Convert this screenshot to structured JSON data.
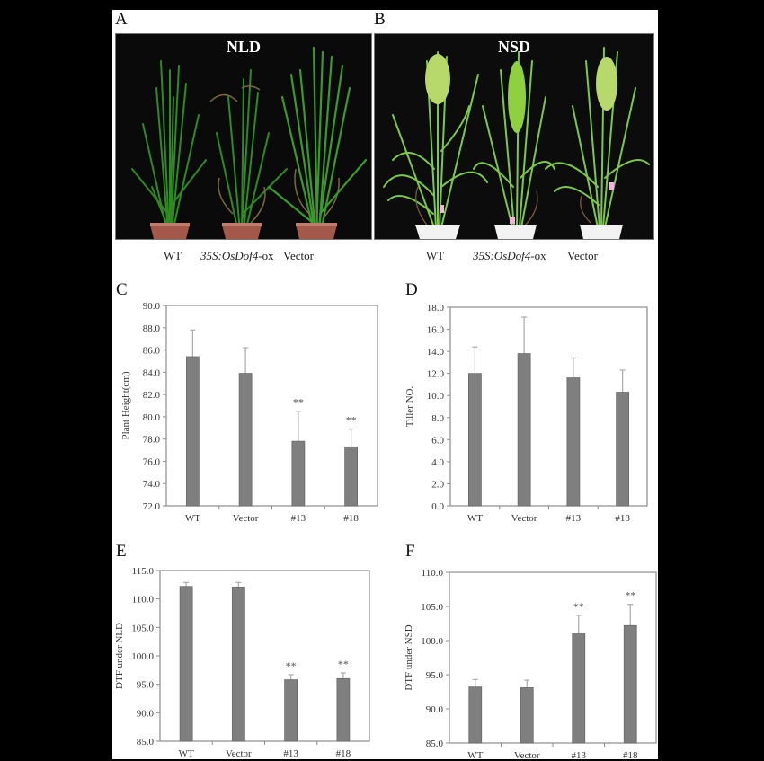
{
  "figure": {
    "panels": {
      "A": {
        "letter": "A",
        "title": "NLD",
        "labels": [
          "WT",
          "35S:OsDof4",
          "-ox",
          "Vector"
        ]
      },
      "B": {
        "letter": "B",
        "title": "NSD",
        "labels": [
          "WT",
          "35S:OsDof4",
          "-ox",
          "Vector"
        ]
      },
      "C": {
        "letter": "C"
      },
      "D": {
        "letter": "D"
      },
      "E": {
        "letter": "E"
      },
      "F": {
        "letter": "F"
      }
    },
    "colors": {
      "bar": "#7f7f7f",
      "axis": "#8c8c8c",
      "background": "#ffffff",
      "frame": "#000000"
    }
  },
  "chart_data": [
    {
      "panel": "C",
      "type": "bar",
      "categories": [
        "WT",
        "Vector",
        "#13",
        "#18"
      ],
      "values": [
        85.4,
        83.9,
        77.8,
        77.3
      ],
      "error_upper": [
        87.8,
        86.2,
        80.5,
        78.9
      ],
      "annotations": [
        "",
        "",
        "**",
        "**"
      ],
      "ylabel": "Plant Height(cm)",
      "xlabel": "",
      "ylim": [
        72.0,
        90.0
      ],
      "yticks": [
        "72.0",
        "74.0",
        "76.0",
        "78.0",
        "80.0",
        "82.0",
        "84.0",
        "86.0",
        "88.0",
        "90.0"
      ],
      "grid": false
    },
    {
      "panel": "D",
      "type": "bar",
      "categories": [
        "WT",
        "Vector",
        "#13",
        "#18"
      ],
      "values": [
        12.0,
        13.8,
        11.6,
        10.3
      ],
      "error_upper": [
        14.4,
        17.1,
        13.4,
        12.3
      ],
      "annotations": [
        "",
        "",
        "",
        ""
      ],
      "ylabel": "Tiller NO.",
      "xlabel": "",
      "ylim": [
        0.0,
        18.0
      ],
      "yticks": [
        "0.0",
        "2.0",
        "4.0",
        "6.0",
        "8.0",
        "10.0",
        "12.0",
        "14.0",
        "16.0",
        "18.0"
      ],
      "grid": false
    },
    {
      "panel": "E",
      "type": "bar",
      "categories": [
        "WT",
        "Vector",
        "#13",
        "#18"
      ],
      "values": [
        112.2,
        112.1,
        95.8,
        96.0
      ],
      "error_upper": [
        112.9,
        112.9,
        96.7,
        97.0
      ],
      "annotations": [
        "",
        "",
        "**",
        "**"
      ],
      "ylabel": "DTF under NLD",
      "xlabel": "",
      "ylim": [
        85.0,
        115.0
      ],
      "yticks": [
        "85.0",
        "90.0",
        "95.0",
        "100.0",
        "105.0",
        "110.0",
        "115.0"
      ],
      "grid": false
    },
    {
      "panel": "F",
      "type": "bar",
      "categories": [
        "WT",
        "Vector",
        "#13",
        "#18"
      ],
      "values": [
        93.2,
        93.1,
        101.1,
        102.2
      ],
      "error_upper": [
        94.3,
        94.2,
        103.7,
        105.3
      ],
      "annotations": [
        "",
        "",
        "**",
        "**"
      ],
      "ylabel": "DTF under NSD",
      "xlabel": "",
      "ylim": [
        85.0,
        110.0
      ],
      "yticks": [
        "85.0",
        "90.0",
        "95.0",
        "100.0",
        "105.0",
        "110.0"
      ],
      "grid": false
    }
  ]
}
